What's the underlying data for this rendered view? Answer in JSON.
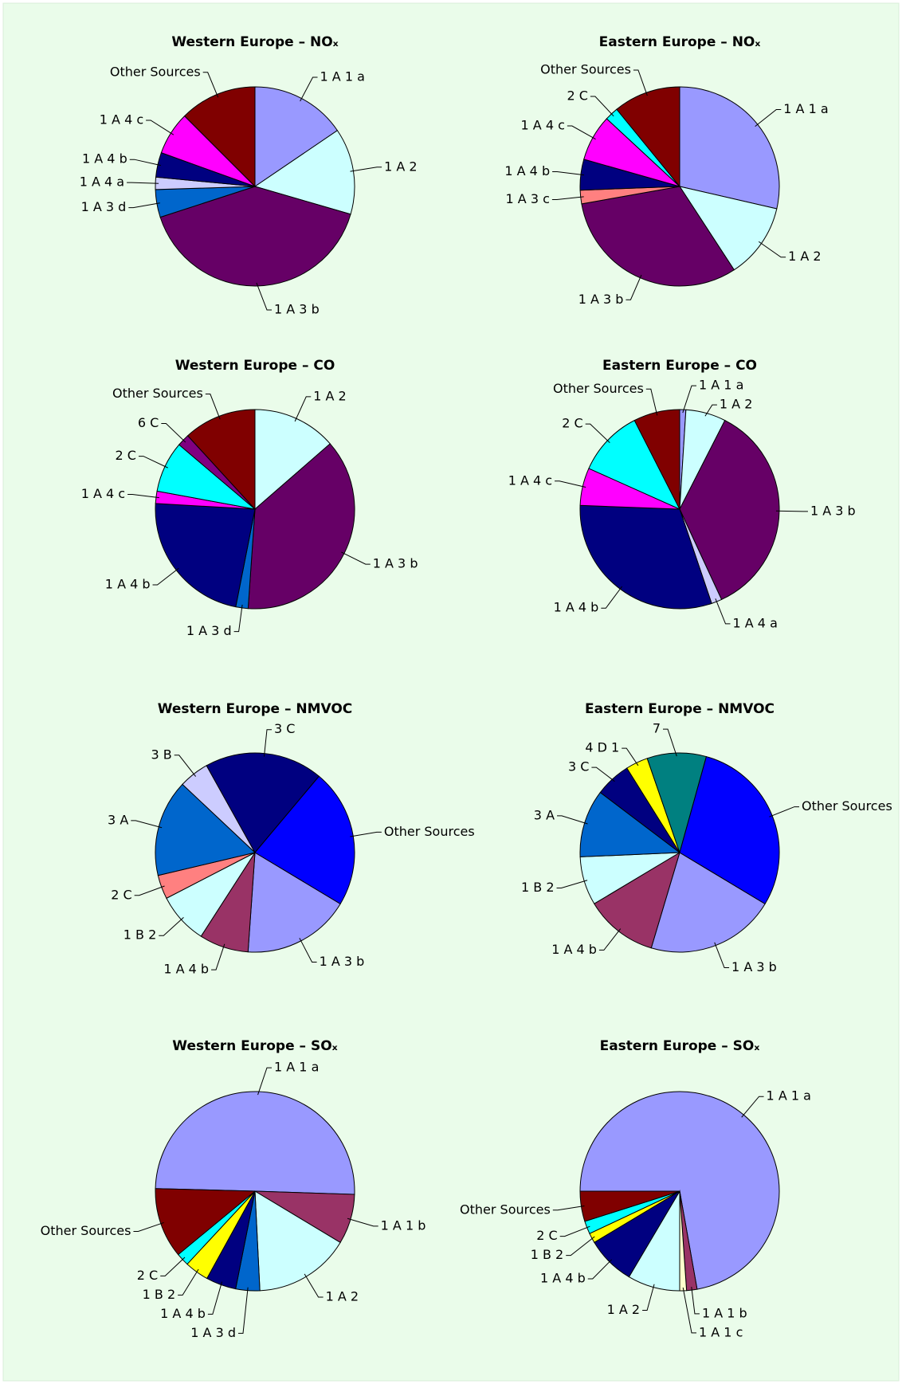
{
  "chart_data": [
    {
      "type": "pie",
      "title": "Western Europe – NOₓ",
      "start_angle": 0,
      "categories": [
        "1 A 1 a",
        "1 A 2",
        "1 A 3 b",
        "1 A 3 d",
        "1 A 4 a",
        "1 A 4 b",
        "1 A 4 c",
        "Other Sources"
      ],
      "values": [
        15.5,
        14,
        40.5,
        4.5,
        2,
        4,
        7,
        12.5
      ],
      "colors": [
        "#9999ff",
        "#ccffff",
        "#660066",
        "#0066cc",
        "#ccccff",
        "#000080",
        "#ff00ff",
        "#800000"
      ]
    },
    {
      "type": "pie",
      "title": "Eastern Europe – NOₓ",
      "start_angle": 0,
      "categories": [
        "1 A 1 a",
        "1 A 2",
        "1 A 3 b",
        "1 A 3 c",
        "1 A 4 b",
        "1 A 4 c",
        "2 C",
        "Other Sources"
      ],
      "values": [
        28.6,
        12.2,
        31.4,
        2.2,
        5,
        7.5,
        2.2,
        10.9
      ],
      "colors": [
        "#9999ff",
        "#ccffff",
        "#660066",
        "#ff8080",
        "#000080",
        "#ff00ff",
        "#00ffff",
        "#800000"
      ]
    },
    {
      "type": "pie",
      "title": "Western Europe – CO",
      "start_angle": 0,
      "categories": [
        "1 A 2",
        "1 A 3 b",
        "1 A 3 d",
        "1 A 4 b",
        "1 A 4 c",
        "2 C",
        "6 C",
        "Other Sources"
      ],
      "values": [
        13.6,
        37.5,
        2,
        22.8,
        2,
        8.3,
        2,
        11.8
      ],
      "colors": [
        "#ccffff",
        "#660066",
        "#0066cc",
        "#000080",
        "#ff00ff",
        "#00ffff",
        "#800080",
        "#800000"
      ]
    },
    {
      "type": "pie",
      "title": "Eastern Europe – CO",
      "start_angle": 0,
      "categories": [
        "1 A 1 a",
        "1 A 2",
        "1 A 3 b",
        "1 A 4 a",
        "1 A 4 b",
        "1 A 4 c",
        "2 C",
        "Other Sources"
      ],
      "values": [
        1,
        6.5,
        35.6,
        1.7,
        30.8,
        6.1,
        10.8,
        7.5
      ],
      "colors": [
        "#9999ff",
        "#ccffff",
        "#660066",
        "#ccccff",
        "#000080",
        "#ff00ff",
        "#00ffff",
        "#800000"
      ]
    },
    {
      "type": "pie",
      "title": "Western Europe – NMVOC",
      "start_angle": 121,
      "categories": [
        "1 A 3 b",
        "1 A 4 b",
        "1 B 2",
        "2 C",
        "3 A",
        "3 B",
        "3 C",
        "Other Sources"
      ],
      "values": [
        17.5,
        8,
        8.3,
        3.9,
        15.7,
        4.9,
        19.2,
        22.5
      ],
      "colors": [
        "#9999ff",
        "#993366",
        "#ccffff",
        "#ff8080",
        "#0066cc",
        "#ccccff",
        "#000080",
        "#0000ff"
      ]
    },
    {
      "type": "pie",
      "title": "Eastern Europe – NMVOC",
      "start_angle": 121,
      "categories": [
        "1 A 3 b",
        "1 A 4 b",
        "1 B 2",
        "3 A",
        "3 C",
        "4 D 1",
        "7",
        "Other Sources"
      ],
      "values": [
        21,
        11.8,
        7.9,
        11,
        5.8,
        3.6,
        9.6,
        29.3
      ],
      "colors": [
        "#9999ff",
        "#993366",
        "#ccffff",
        "#0066cc",
        "#000080",
        "#ffff00",
        "#008080",
        "#0000ff"
      ]
    },
    {
      "type": "pie",
      "title": "Western Europe – SOₓ",
      "start_angle": 271.5,
      "categories": [
        "1 A 1 a",
        "1 A 1 b",
        "1 A 2",
        "1 A 3 d",
        "1 A 4 b",
        "1 B 2",
        "2 C",
        "Other Sources"
      ],
      "values": [
        50.1,
        8.1,
        15.6,
        3.9,
        4.9,
        3.9,
        2.1,
        11.4
      ],
      "colors": [
        "#9999ff",
        "#993366",
        "#ccffff",
        "#0066cc",
        "#000080",
        "#ffff00",
        "#00ffff",
        "#800000"
      ]
    },
    {
      "type": "pie",
      "title": "Eastern Europe – SOₓ",
      "start_angle": 270,
      "categories": [
        "1 A 1 a",
        "1 A 1 b",
        "1 A 1 c",
        "1 A 2",
        "1 A 4 b",
        "1 B 2",
        "2 C",
        "Other Sources"
      ],
      "values": [
        72.2,
        1.7,
        1.1,
        8.5,
        7.9,
        1.6,
        2.1,
        4.9
      ],
      "colors": [
        "#9999ff",
        "#993366",
        "#ffffcc",
        "#ccffff",
        "#000080",
        "#ffff00",
        "#00ffff",
        "#800000"
      ]
    }
  ]
}
